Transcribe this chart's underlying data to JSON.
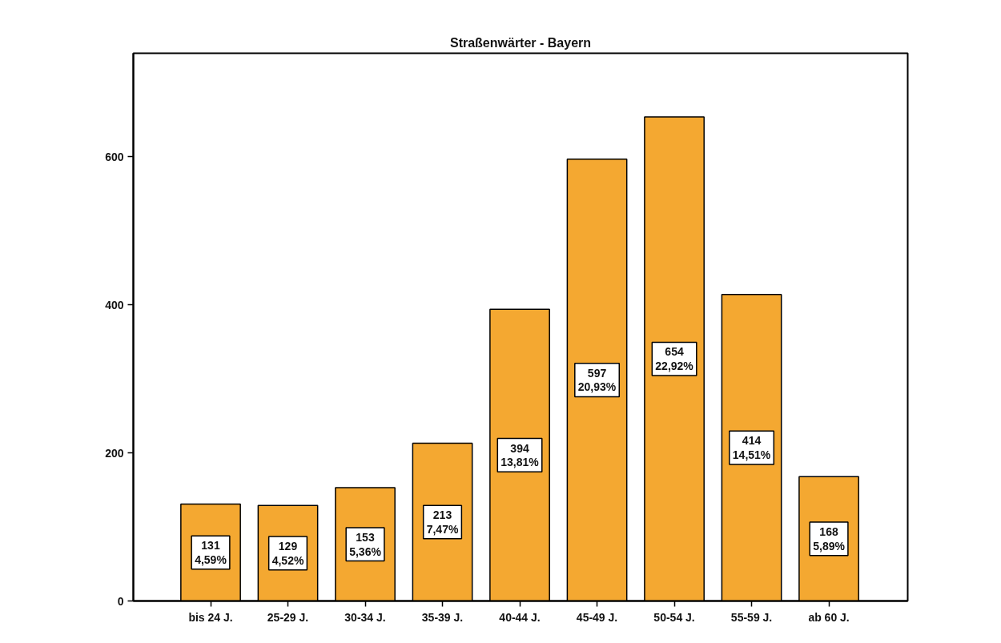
{
  "chart_data": {
    "type": "bar",
    "title": "Straßenwärter - Bayern",
    "categories": [
      "bis 24 J.",
      "25-29 J.",
      "30-34 J.",
      "35-39 J.",
      "40-44 J.",
      "45-49 J.",
      "50-54 J.",
      "55-59 J.",
      "ab 60 J."
    ],
    "values": [
      131,
      129,
      153,
      213,
      394,
      597,
      654,
      414,
      168
    ],
    "value_labels": [
      "131\n4,59%",
      "129\n4,52%",
      "153\n5,36%",
      "213\n7,47%",
      "394\n13,81%",
      "597\n20,93%",
      "654\n22,92%",
      "414\n14,51%",
      "168\n5,89%"
    ],
    "color": "#f4a831",
    "ylim": [
      0,
      740
    ],
    "yticks": [
      0,
      200,
      400,
      600
    ],
    "grid": false
  }
}
